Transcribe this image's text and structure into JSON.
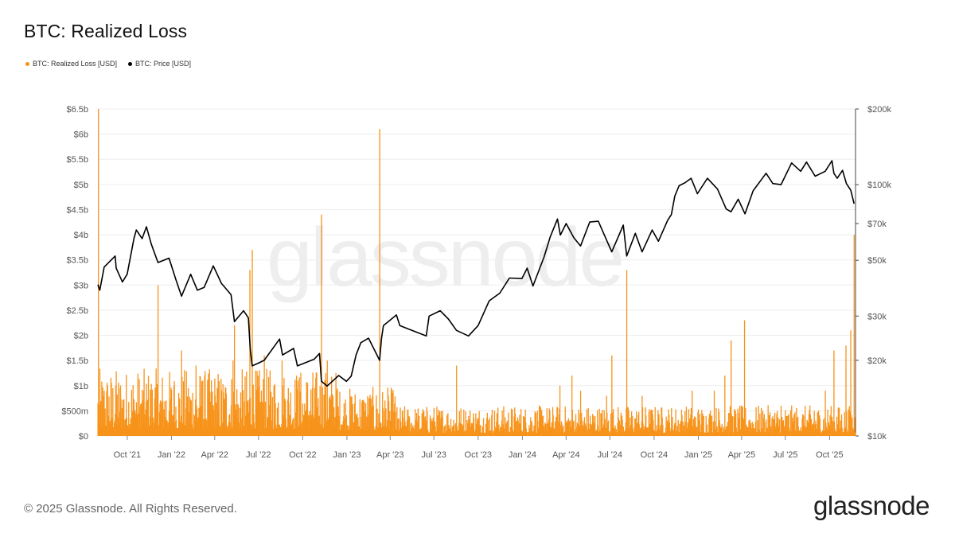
{
  "header": {
    "title": "BTC: Realized Loss"
  },
  "footer": {
    "copyright": "© 2025 Glassnode. All Rights Reserved.",
    "brand": "glassnode"
  },
  "watermark": "glassnode",
  "colors": {
    "loss": "#f7931a",
    "price": "#000000",
    "grid": "#eeeeee"
  },
  "chart_data": {
    "type": "bar",
    "title": "BTC: Realized Loss",
    "legend": [
      {
        "label": "BTC: Realized Loss [USD]",
        "color": "#f7931a"
      },
      {
        "label": "BTC: Price [USD]",
        "color": "#000000"
      }
    ],
    "legend_position": "top-left",
    "grid": true,
    "x_ticks": [
      "Oct '21",
      "Jan '22",
      "Apr '22",
      "Jul '22",
      "Oct '22",
      "Jan '23",
      "Apr '23",
      "Jul '23",
      "Oct '23",
      "Jan '24",
      "Apr '24",
      "Jul '24",
      "Oct '24",
      "Jan '25",
      "Apr '25",
      "Jul '25",
      "Oct '25"
    ],
    "x_tick_dates": [
      "2021-10-01",
      "2022-01-01",
      "2022-04-01",
      "2022-07-01",
      "2022-10-01",
      "2023-01-01",
      "2023-04-01",
      "2023-07-01",
      "2023-10-01",
      "2024-01-01",
      "2024-04-01",
      "2024-07-01",
      "2024-10-01",
      "2025-01-01",
      "2025-04-01",
      "2025-07-01",
      "2025-10-01"
    ],
    "x_range": [
      "2021-08-01",
      "2025-11-24"
    ],
    "y_left": {
      "ticks": [
        "$0",
        "$500m",
        "$1b",
        "$1.5b",
        "$2b",
        "$2.5b",
        "$3b",
        "$3.5b",
        "$4b",
        "$4.5b",
        "$5b",
        "$5.5b",
        "$6b",
        "$6.5b"
      ],
      "ylim": [
        0,
        6500000000
      ],
      "unit": "USD"
    },
    "y_right": {
      "scale": "log",
      "ticks": [
        "$10k",
        "$20k",
        "$30k",
        "$50k",
        "$70k",
        "$100k",
        "$200k"
      ],
      "tick_values": [
        10000,
        20000,
        30000,
        50000,
        70000,
        100000,
        200000
      ],
      "ylim": [
        10000,
        200000
      ],
      "unit": "USD"
    },
    "series": [
      {
        "name": "BTC: Realized Loss [USD]",
        "type": "bar",
        "axis": "left",
        "baseline": 250000000,
        "spikes": [
          {
            "date": "2021-08-02",
            "value": 6500000000
          },
          {
            "date": "2021-09-07",
            "value": 1000000000
          },
          {
            "date": "2021-12-04",
            "value": 3000000000
          },
          {
            "date": "2022-01-06",
            "value": 1000000000
          },
          {
            "date": "2022-01-22",
            "value": 1700000000
          },
          {
            "date": "2022-02-21",
            "value": 1400000000
          },
          {
            "date": "2022-03-07",
            "value": 1100000000
          },
          {
            "date": "2022-05-09",
            "value": 1500000000
          },
          {
            "date": "2022-05-12",
            "value": 2200000000
          },
          {
            "date": "2022-06-13",
            "value": 3300000000
          },
          {
            "date": "2022-06-18",
            "value": 3700000000
          },
          {
            "date": "2022-06-30",
            "value": 1200000000
          },
          {
            "date": "2022-07-13",
            "value": 1600000000
          },
          {
            "date": "2022-08-19",
            "value": 1500000000
          },
          {
            "date": "2022-09-21",
            "value": 1100000000
          },
          {
            "date": "2022-11-09",
            "value": 4400000000
          },
          {
            "date": "2022-11-21",
            "value": 1500000000
          },
          {
            "date": "2023-03-10",
            "value": 6100000000
          },
          {
            "date": "2023-06-15",
            "value": 300000000
          },
          {
            "date": "2023-08-17",
            "value": 1400000000
          },
          {
            "date": "2024-03-19",
            "value": 1000000000
          },
          {
            "date": "2024-04-13",
            "value": 1200000000
          },
          {
            "date": "2024-05-01",
            "value": 900000000
          },
          {
            "date": "2024-06-24",
            "value": 800000000
          },
          {
            "date": "2024-07-05",
            "value": 1600000000
          },
          {
            "date": "2024-08-05",
            "value": 3300000000
          },
          {
            "date": "2024-09-06",
            "value": 800000000
          },
          {
            "date": "2024-12-19",
            "value": 900000000
          },
          {
            "date": "2025-02-03",
            "value": 900000000
          },
          {
            "date": "2025-02-25",
            "value": 1200000000
          },
          {
            "date": "2025-03-10",
            "value": 1900000000
          },
          {
            "date": "2025-04-07",
            "value": 2300000000
          },
          {
            "date": "2025-06-22",
            "value": 600000000
          },
          {
            "date": "2025-08-30",
            "value": 500000000
          },
          {
            "date": "2025-09-22",
            "value": 900000000
          },
          {
            "date": "2025-10-10",
            "value": 1700000000
          },
          {
            "date": "2025-11-04",
            "value": 1800000000
          },
          {
            "date": "2025-11-14",
            "value": 2100000000
          },
          {
            "date": "2025-11-21",
            "value": 4000000000
          }
        ]
      },
      {
        "name": "BTC: Price [USD]",
        "type": "line",
        "axis": "right",
        "points": [
          [
            "2021-08-01",
            40000
          ],
          [
            "2021-08-05",
            38000
          ],
          [
            "2021-08-14",
            47000
          ],
          [
            "2021-09-06",
            52000
          ],
          [
            "2021-09-08",
            46500
          ],
          [
            "2021-09-21",
            41000
          ],
          [
            "2021-10-01",
            44000
          ],
          [
            "2021-10-15",
            61000
          ],
          [
            "2021-10-20",
            66000
          ],
          [
            "2021-11-01",
            61000
          ],
          [
            "2021-11-10",
            68000
          ],
          [
            "2021-11-20",
            58000
          ],
          [
            "2021-12-04",
            49000
          ],
          [
            "2021-12-27",
            51000
          ],
          [
            "2022-01-10",
            42000
          ],
          [
            "2022-01-22",
            36000
          ],
          [
            "2022-02-10",
            44000
          ],
          [
            "2022-02-24",
            38000
          ],
          [
            "2022-03-10",
            39000
          ],
          [
            "2022-03-29",
            47500
          ],
          [
            "2022-04-15",
            40500
          ],
          [
            "2022-05-05",
            36500
          ],
          [
            "2022-05-12",
            28500
          ],
          [
            "2022-05-31",
            31500
          ],
          [
            "2022-06-10",
            29500
          ],
          [
            "2022-06-14",
            22000
          ],
          [
            "2022-06-18",
            19000
          ],
          [
            "2022-07-01",
            19500
          ],
          [
            "2022-07-13",
            20000
          ],
          [
            "2022-08-14",
            24300
          ],
          [
            "2022-08-20",
            21000
          ],
          [
            "2022-09-12",
            22300
          ],
          [
            "2022-09-20",
            19000
          ],
          [
            "2022-10-25",
            20200
          ],
          [
            "2022-11-05",
            21300
          ],
          [
            "2022-11-09",
            16500
          ],
          [
            "2022-11-21",
            15800
          ],
          [
            "2022-12-15",
            17400
          ],
          [
            "2022-12-31",
            16500
          ],
          [
            "2023-01-10",
            17300
          ],
          [
            "2023-01-20",
            21000
          ],
          [
            "2023-01-30",
            23500
          ],
          [
            "2023-02-15",
            24500
          ],
          [
            "2023-03-10",
            20000
          ],
          [
            "2023-03-14",
            24500
          ],
          [
            "2023-03-18",
            27500
          ],
          [
            "2023-04-14",
            30300
          ],
          [
            "2023-04-21",
            27500
          ],
          [
            "2023-05-12",
            26500
          ],
          [
            "2023-06-15",
            25000
          ],
          [
            "2023-06-21",
            30000
          ],
          [
            "2023-07-14",
            31500
          ],
          [
            "2023-07-31",
            29200
          ],
          [
            "2023-08-17",
            26300
          ],
          [
            "2023-09-11",
            25000
          ],
          [
            "2023-10-01",
            27500
          ],
          [
            "2023-10-24",
            34500
          ],
          [
            "2023-11-15",
            37000
          ],
          [
            "2023-12-05",
            42500
          ],
          [
            "2023-12-31",
            42300
          ],
          [
            "2024-01-11",
            46500
          ],
          [
            "2024-01-23",
            39500
          ],
          [
            "2024-02-15",
            51500
          ],
          [
            "2024-02-28",
            62000
          ],
          [
            "2024-03-14",
            73000
          ],
          [
            "2024-03-20",
            63000
          ],
          [
            "2024-04-01",
            70000
          ],
          [
            "2024-04-17",
            61500
          ],
          [
            "2024-05-01",
            57000
          ],
          [
            "2024-05-20",
            71000
          ],
          [
            "2024-06-07",
            71500
          ],
          [
            "2024-07-05",
            54000
          ],
          [
            "2024-07-29",
            69000
          ],
          [
            "2024-08-05",
            52000
          ],
          [
            "2024-08-23",
            64000
          ],
          [
            "2024-09-06",
            54000
          ],
          [
            "2024-09-27",
            66000
          ],
          [
            "2024-10-10",
            59500
          ],
          [
            "2024-10-29",
            72000
          ],
          [
            "2024-11-06",
            76000
          ],
          [
            "2024-11-13",
            90000
          ],
          [
            "2024-11-22",
            99000
          ],
          [
            "2024-12-05",
            102000
          ],
          [
            "2024-12-17",
            106000
          ],
          [
            "2024-12-30",
            92000
          ],
          [
            "2025-01-20",
            106000
          ],
          [
            "2025-02-10",
            96000
          ],
          [
            "2025-02-28",
            80000
          ],
          [
            "2025-03-10",
            78000
          ],
          [
            "2025-03-25",
            87500
          ],
          [
            "2025-04-08",
            76500
          ],
          [
            "2025-04-25",
            94500
          ],
          [
            "2025-05-22",
            111000
          ],
          [
            "2025-06-05",
            101000
          ],
          [
            "2025-06-22",
            100000
          ],
          [
            "2025-07-14",
            122000
          ],
          [
            "2025-08-02",
            113000
          ],
          [
            "2025-08-14",
            123000
          ],
          [
            "2025-09-01",
            108000
          ],
          [
            "2025-09-22",
            113000
          ],
          [
            "2025-10-06",
            124500
          ],
          [
            "2025-10-10",
            111000
          ],
          [
            "2025-10-17",
            106000
          ],
          [
            "2025-10-28",
            114000
          ],
          [
            "2025-11-05",
            101000
          ],
          [
            "2025-11-14",
            95000
          ],
          [
            "2025-11-21",
            84000
          ]
        ]
      }
    ]
  }
}
